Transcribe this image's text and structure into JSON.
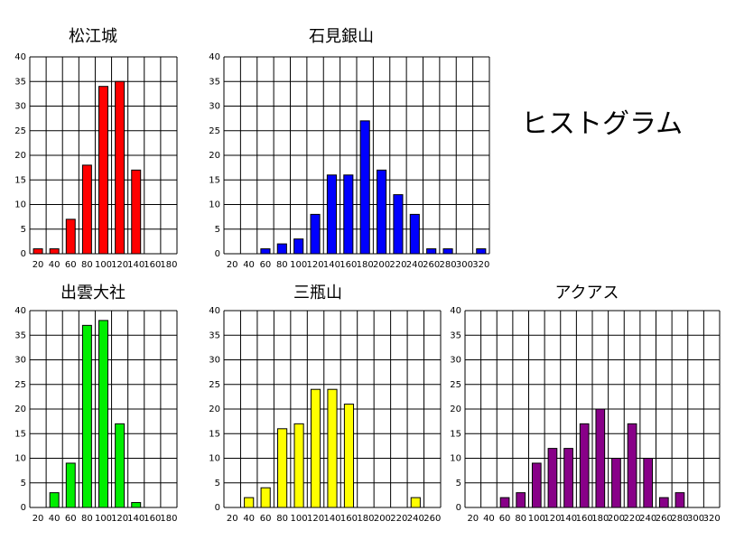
{
  "page_title": "ヒストグラム",
  "chart_data": [
    {
      "type": "bar",
      "title": "松江城",
      "categories": [
        "20",
        "40",
        "60",
        "80",
        "100",
        "120",
        "140",
        "160",
        "180"
      ],
      "values": [
        1,
        1,
        7,
        18,
        34,
        35,
        17,
        0,
        0
      ],
      "ylim": [
        0,
        40
      ],
      "yticks": [
        0,
        5,
        10,
        15,
        20,
        25,
        30,
        35,
        40
      ],
      "color": "#ff0000",
      "grid": true
    },
    {
      "type": "bar",
      "title": "石見銀山",
      "categories": [
        "20",
        "40",
        "60",
        "80",
        "100",
        "120",
        "140",
        "160",
        "180",
        "200",
        "220",
        "240",
        "260",
        "280",
        "300",
        "320"
      ],
      "values": [
        0,
        0,
        1,
        2,
        3,
        8,
        16,
        16,
        27,
        17,
        12,
        8,
        1,
        1,
        0,
        1
      ],
      "ylim": [
        0,
        40
      ],
      "yticks": [
        0,
        5,
        10,
        15,
        20,
        25,
        30,
        35,
        40
      ],
      "color": "#0000ff",
      "grid": true
    },
    {
      "type": "bar",
      "title": "出雲大社",
      "categories": [
        "20",
        "40",
        "60",
        "80",
        "100",
        "120",
        "140",
        "160",
        "180"
      ],
      "values": [
        0,
        3,
        9,
        37,
        38,
        17,
        1,
        0,
        0
      ],
      "ylim": [
        0,
        40
      ],
      "yticks": [
        0,
        5,
        10,
        15,
        20,
        25,
        30,
        35,
        40
      ],
      "color": "#00ee00",
      "grid": true
    },
    {
      "type": "bar",
      "title": "三瓶山",
      "categories": [
        "20",
        "40",
        "60",
        "80",
        "100",
        "120",
        "140",
        "160",
        "180",
        "200",
        "220",
        "240",
        "260"
      ],
      "values": [
        0,
        2,
        4,
        16,
        17,
        24,
        24,
        21,
        0,
        0,
        0,
        2,
        0
      ],
      "ylim": [
        0,
        40
      ],
      "yticks": [
        0,
        5,
        10,
        15,
        20,
        25,
        30,
        35,
        40
      ],
      "color": "#ffff00",
      "grid": true
    },
    {
      "type": "bar",
      "title": "アクアス",
      "categories": [
        "20",
        "40",
        "60",
        "80",
        "100",
        "120",
        "140",
        "160",
        "180",
        "200",
        "220",
        "240",
        "260",
        "280",
        "300",
        "320"
      ],
      "values": [
        0,
        0,
        2,
        3,
        9,
        12,
        12,
        17,
        20,
        10,
        17,
        10,
        2,
        3,
        0,
        0
      ],
      "ylim": [
        0,
        40
      ],
      "yticks": [
        0,
        5,
        10,
        15,
        20,
        25,
        30,
        35,
        40
      ],
      "color": "#880088",
      "grid": true
    }
  ]
}
